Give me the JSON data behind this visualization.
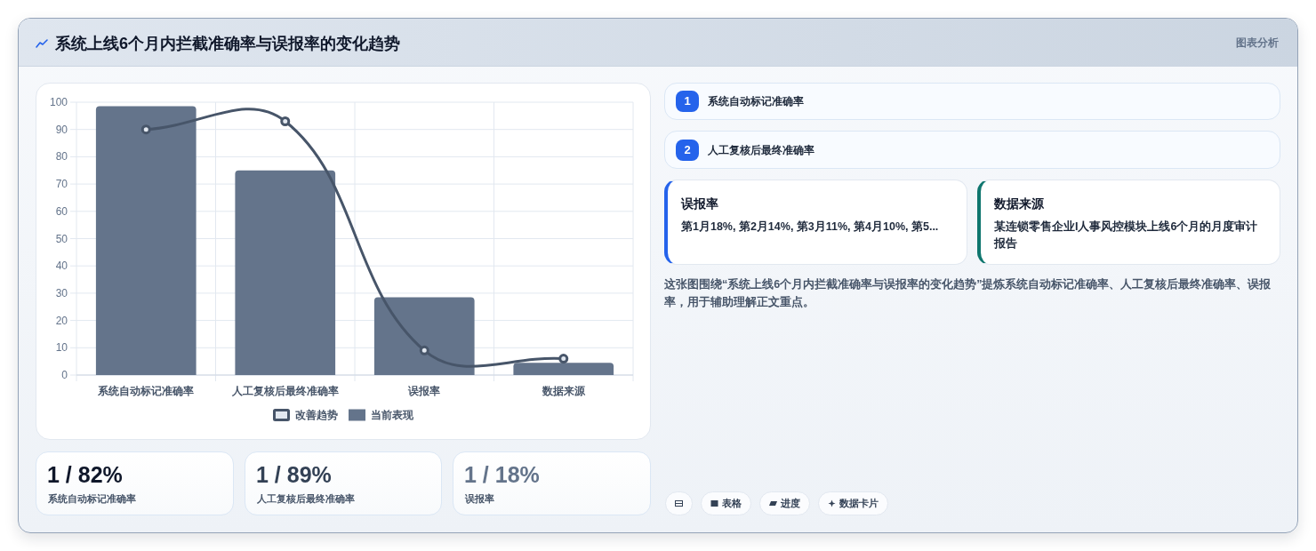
{
  "chart_data": [
    {
      "type": "bar",
      "title": "系统上线6个月内拦截准确率与误报率的变化趋势",
      "annotations": [
        "图表分析"
      ],
      "categories": [
        "系统自动标记准确率",
        "人工复核后最终准确率",
        "误报率",
        "数据来源"
      ],
      "series": [
        {
          "name": "改善趋势",
          "type": "line",
          "color": "#475569",
          "marker": "circle",
          "values": [
            90,
            93,
            9,
            6
          ]
        },
        {
          "name": "当前表现",
          "type": "bar",
          "color": "#64748b",
          "values": [
            98.5,
            75,
            28.5,
            4.5
          ]
        }
      ],
      "ylim": [
        0,
        100
      ],
      "yticks": [
        0,
        10,
        20,
        30,
        40,
        50,
        60,
        70,
        80,
        90,
        100
      ],
      "grid": true,
      "legend": "bottom"
    },
    {
      "type": "other",
      "annotations": [
        "1",
        "系统自动标记准确率",
        "2",
        "人工复核后最终准确率",
        "误报率",
        "第1月18%, 第2月14%, 第3月11%, 第4月10%, 第5...",
        "数据来源",
        "某连锁零售企业I人事风控模块上线6个月的月度审计报告",
        "这张图围绕“系统上线6个月内拦截准确率与误报率的变化趋势”提炼系统自动标记准确率、人工复核后最终准确率、误报率，用于辅助理解正文重点。",
        "表格",
        "进度",
        "数据卡片"
      ]
    },
    {
      "type": "other",
      "annotations": [
        "1 / 82%",
        "系统自动标记准确率",
        "1 / 89%",
        "人工复核后最终准确率",
        "1 / 18%",
        "误报率"
      ]
    }
  ]
}
